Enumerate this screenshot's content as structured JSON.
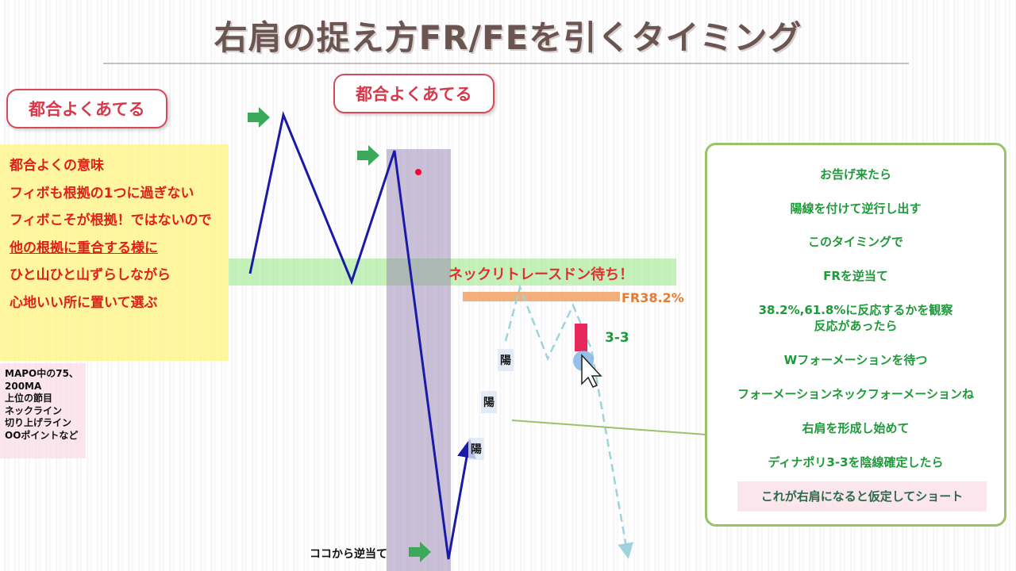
{
  "title": "右肩の捉え方FR/FEを引くタイミング",
  "callouts": [
    "都合よくあてる",
    "都合よくあてる"
  ],
  "yellow_box": [
    "都合よくの意味",
    "フィボも根拠の1つに過ぎない",
    "フィボこそが根拠！ではないので",
    "他の根拠に重合する様に",
    "ひと山ひと山ずらしながら",
    "心地いい所に置いて選ぶ"
  ],
  "pink_box": [
    "MAPO中の75、",
    "200MA",
    "上位の節目",
    "ネックライン",
    "切り上げライン",
    "OOポイントなど"
  ],
  "neck_label": "ネックリトレースドン待ち！",
  "fr_label": "FR38.2%",
  "dinapoli_label": "3-3",
  "yo_labels": [
    "陽",
    "陽",
    "陽"
  ],
  "bottom_label": "ココから逆当て",
  "panel": [
    "お告げ来たら",
    "陽線を付けて逆行し出す",
    "このタイミングで",
    "FRを逆当て",
    "38.2%,61.8%に反応するかを観察",
    "反応があったら",
    "Wフォーメーションを待つ",
    "フォーメーションネックフォーメーションね",
    "右肩を形成し始めて",
    "ディナポリ3-3を陰線確定したら",
    "これが右肩になると仮定してショート"
  ],
  "colors": {
    "line": "#1a1aa8",
    "dashed": "#9fd3dc",
    "panel_text": "#1e9a3a",
    "callout": "#d63a4a",
    "arrow": "#3aaa5a"
  }
}
